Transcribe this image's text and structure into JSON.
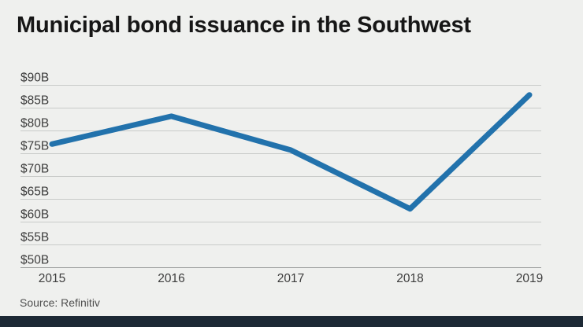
{
  "title": "Municipal bond issuance in the Southwest",
  "source": "Source: Refinitiv",
  "colors": {
    "background": "#eff0ee",
    "line": "#2272ac",
    "gridline": "#c9cbc9",
    "axis_line": "#9c9e9d",
    "tick_label": "#3d3d3d",
    "title_text": "#161616",
    "source_text": "#4f4f4f",
    "footer_bar": "#1d2935"
  },
  "chart_data": {
    "type": "line",
    "title": "Municipal bond issuance in the Southwest",
    "x": [
      2015,
      2016,
      2017,
      2018,
      2019
    ],
    "xtick_labels": [
      "2015",
      "2016",
      "2017",
      "2018",
      "2019"
    ],
    "series": [
      {
        "name": "Municipal bond issuance ($B)",
        "values": [
          77.1,
          83.2,
          75.8,
          62.9,
          87.9
        ]
      }
    ],
    "xlabel": "",
    "ylabel": "",
    "ylim": [
      50,
      90
    ],
    "ytick_step": 5,
    "ytick_labels": [
      "$50B",
      "$55B",
      "$60B",
      "$65B",
      "$70B",
      "$75B",
      "$80B",
      "$85B",
      "$90B"
    ],
    "grid": "horizontal",
    "legend": "none",
    "source": "Source: Refinitiv"
  }
}
